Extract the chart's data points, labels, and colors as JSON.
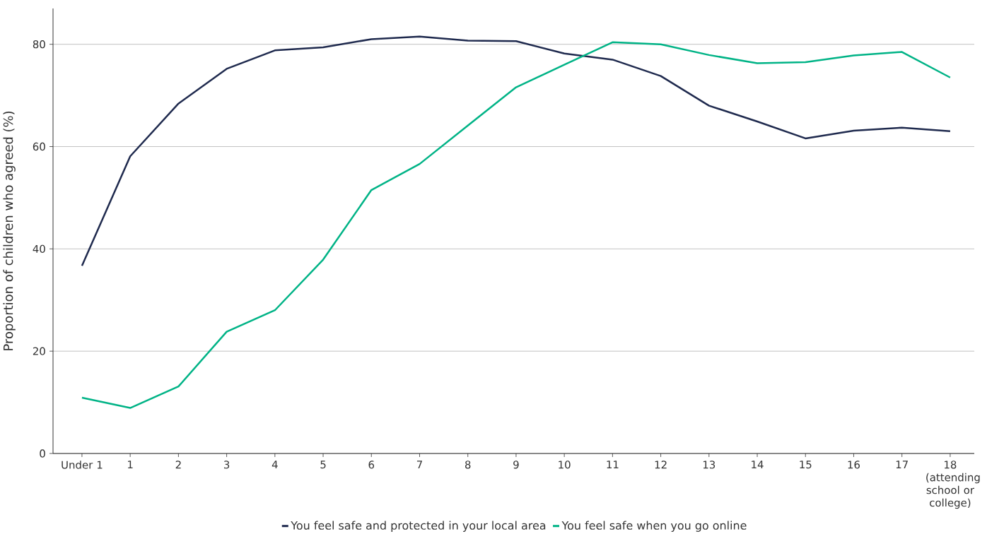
{
  "chart_data": {
    "type": "line",
    "ylabel": "Proportion of children who agreed (%)",
    "categories": [
      "Under 1",
      "1",
      "2",
      "3",
      "4",
      "5",
      "6",
      "7",
      "8",
      "9",
      "10",
      "11",
      "12",
      "13",
      "14",
      "15",
      "16",
      "17",
      "18 (attending school or college)"
    ],
    "series": [
      {
        "name": "You feel safe and protected in your local area",
        "color": "#1f2a4e",
        "values": [
          36.7,
          58.1,
          68.4,
          75.2,
          78.8,
          79.4,
          81.0,
          81.5,
          80.7,
          80.6,
          78.2,
          77.0,
          73.8,
          68.0,
          64.9,
          61.6,
          63.1,
          63.7,
          63.0
        ]
      },
      {
        "name": "You feel safe when you go online",
        "color": "#00b386",
        "values": [
          10.9,
          8.9,
          13.1,
          23.8,
          28.0,
          37.9,
          51.5,
          56.6,
          64.1,
          71.6,
          76.0,
          80.4,
          80.0,
          77.9,
          76.3,
          76.5,
          77.8,
          78.5,
          73.5
        ]
      }
    ],
    "ylim": [
      0,
      87
    ],
    "yticks": [
      0,
      20,
      40,
      60,
      80
    ],
    "grid": "y",
    "legend": "bottom",
    "marker": "none",
    "line_style": "solid"
  }
}
